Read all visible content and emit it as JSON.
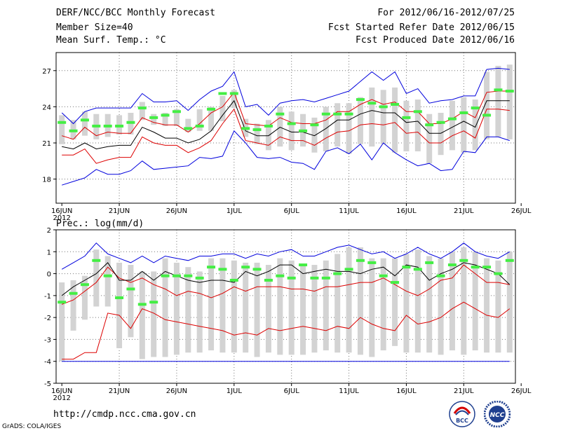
{
  "header": {
    "title": "DERF/NCC/BCC Monthly Forecast",
    "member_size": "Member Size=40",
    "variable": "Mean Surf. Temp.: °C",
    "forecast_period": "For 2012/06/16-2012/07/25",
    "start_date": "Fcst Started Refer Date 2012/06/15",
    "produced_date": "Fcst Produced Date 2012/06/16"
  },
  "footer": {
    "url": "http://cmdp.ncc.cma.gov.cn",
    "grads": "GrADS: COLA/IGES",
    "logo_left_text": "BCC",
    "logo_right_text": "NCC"
  },
  "colors": {
    "box": "#d3d3d3",
    "mean": "#000000",
    "sd": "#dd0000",
    "extreme": "#0000dd",
    "obs": "#44ee44",
    "grid": "#777777"
  },
  "chart_data": [
    {
      "type": "line",
      "title": "Mean Surf. Temp.: °C",
      "x_tick_labels": [
        "16JUN",
        "21JUN",
        "26JUN",
        "1JUL",
        "6JUL",
        "11JUL",
        "16JUL",
        "21JUL",
        "26JUL"
      ],
      "x_year_label": "2012",
      "ylim": [
        16,
        28.5
      ],
      "y_ticks": [
        18,
        21,
        24,
        27
      ],
      "days": 40,
      "series": [
        {
          "name": "mean",
          "values": [
            20.7,
            20.5,
            21.0,
            20.5,
            20.7,
            20.8,
            20.8,
            22.3,
            21.9,
            21.4,
            21.4,
            21.0,
            21.3,
            22.0,
            23.3,
            24.5,
            22.0,
            21.6,
            21.6,
            22.3,
            21.9,
            21.9,
            21.6,
            22.2,
            22.9,
            22.9,
            23.4,
            23.7,
            23.5,
            23.5,
            22.7,
            22.8,
            21.8,
            21.8,
            22.3,
            22.8,
            22.3,
            24.5,
            24.5,
            24.5
          ]
        },
        {
          "name": "plus_1sd",
          "values": [
            21.6,
            21.3,
            22.3,
            21.6,
            21.9,
            21.8,
            21.8,
            23.1,
            22.7,
            22.5,
            22.5,
            21.9,
            22.6,
            23.5,
            24.0,
            25.2,
            22.6,
            22.5,
            22.4,
            23.1,
            22.7,
            22.6,
            22.6,
            22.9,
            23.6,
            23.6,
            24.2,
            24.6,
            24.2,
            24.4,
            23.6,
            23.6,
            22.6,
            22.6,
            23.0,
            23.6,
            23.1,
            25.2,
            25.3,
            25.3
          ]
        },
        {
          "name": "minus_1sd",
          "values": [
            20.0,
            20.0,
            20.5,
            19.3,
            19.6,
            19.8,
            19.8,
            21.5,
            21.0,
            20.8,
            20.8,
            20.2,
            20.6,
            21.2,
            22.6,
            23.8,
            21.2,
            21.0,
            20.8,
            21.5,
            21.2,
            21.2,
            20.8,
            21.4,
            21.9,
            22.0,
            22.5,
            22.6,
            22.5,
            22.7,
            21.8,
            21.9,
            21.0,
            21.0,
            21.6,
            22.0,
            21.4,
            23.8,
            23.8,
            23.7
          ]
        },
        {
          "name": "max",
          "values": [
            23.5,
            22.6,
            23.6,
            23.9,
            23.9,
            23.9,
            23.9,
            25.1,
            24.4,
            24.4,
            24.5,
            23.7,
            24.6,
            25.3,
            25.7,
            26.9,
            24.0,
            24.2,
            23.3,
            24.3,
            24.5,
            24.6,
            24.4,
            24.7,
            25.0,
            25.3,
            26.1,
            26.9,
            26.2,
            26.9,
            25.1,
            25.5,
            24.3,
            24.5,
            24.6,
            24.9,
            24.9,
            27.1,
            27.2,
            27.1
          ]
        },
        {
          "name": "min",
          "values": [
            17.5,
            17.8,
            18.1,
            18.8,
            18.4,
            18.4,
            18.7,
            19.5,
            18.8,
            18.9,
            19.0,
            19.1,
            19.8,
            19.7,
            19.9,
            22.0,
            21.0,
            19.8,
            19.7,
            19.8,
            19.4,
            19.3,
            18.8,
            20.3,
            20.6,
            20.1,
            20.9,
            19.6,
            21.0,
            20.2,
            19.6,
            19.1,
            19.3,
            18.7,
            18.8,
            20.3,
            20.2,
            21.5,
            21.5,
            21.2
          ]
        },
        {
          "name": "observed",
          "values": [
            22.7,
            22.0,
            22.9,
            22.4,
            22.4,
            22.4,
            22.7,
            23.9,
            23.1,
            23.3,
            23.6,
            22.2,
            22.4,
            23.8,
            25.1,
            25.1,
            22.2,
            22.1,
            22.4,
            23.4,
            22.6,
            22.0,
            22.5,
            23.4,
            23.4,
            23.4,
            24.6,
            24.3,
            24.0,
            24.2,
            23.1,
            23.6,
            22.5,
            22.7,
            23.0,
            23.5,
            23.9,
            23.3,
            25.4,
            25.3
          ]
        }
      ],
      "box_upper": [
        23.3,
        22.9,
        23.6,
        23.4,
        23.4,
        23.3,
        23.5,
        24.4,
        23.4,
        23.5,
        23.8,
        23.0,
        23.8,
        24.0,
        24.9,
        25.4,
        23.0,
        22.6,
        22.9,
        24.0,
        23.6,
        23.4,
        23.1,
        24.0,
        24.3,
        24.3,
        24.8,
        25.6,
        25.4,
        25.6,
        24.5,
        24.6,
        23.4,
        23.5,
        24.5,
        24.8,
        24.6,
        26.9,
        27.4,
        27.5
      ],
      "box_lower": [
        20.9,
        21.3,
        21.6,
        21.3,
        21.5,
        21.7,
        21.7,
        22.9,
        22.5,
        22.4,
        22.4,
        21.9,
        22.0,
        22.0,
        22.8,
        23.9,
        21.5,
        20.9,
        20.4,
        20.7,
        20.4,
        20.7,
        20.2,
        20.3,
        20.7,
        20.1,
        20.9,
        20.7,
        20.9,
        20.2,
        20.3,
        20.3,
        19.3,
        20.0,
        20.4,
        20.2,
        20.4,
        21.3,
        21.5,
        21.3
      ]
    },
    {
      "type": "line",
      "title": "Prec.: log(mm/d)",
      "x_tick_labels": [
        "16JUN",
        "21JUN",
        "26JUN",
        "1JUL",
        "6JUL",
        "11JUL",
        "16JUL",
        "21JUL",
        "26JUL"
      ],
      "x_year_label": "2012",
      "ylim": [
        -5,
        2
      ],
      "y_ticks": [
        -5,
        -4,
        -3,
        -2,
        -1,
        0,
        1,
        2
      ],
      "days": 40,
      "series": [
        {
          "name": "mean",
          "values": [
            -1.0,
            -0.6,
            -0.3,
            0.0,
            0.5,
            -0.3,
            -0.3,
            0.1,
            -0.3,
            0.1,
            -0.1,
            -0.3,
            -0.4,
            -0.3,
            -0.3,
            -0.4,
            0.1,
            -0.1,
            0.1,
            0.4,
            0.4,
            0.0,
            0.1,
            0.2,
            0.1,
            0.1,
            0.0,
            0.2,
            0.3,
            -0.1,
            0.4,
            0.3,
            -0.3,
            0.0,
            0.2,
            0.5,
            0.4,
            0.2,
            0.0,
            -0.5
          ]
        },
        {
          "name": "plus_1sd",
          "values": [
            -1.4,
            -1.2,
            -0.8,
            -0.4,
            0.3,
            -0.2,
            -0.4,
            -0.2,
            -0.5,
            -0.7,
            -1.0,
            -0.8,
            -0.9,
            -1.1,
            -0.9,
            -0.6,
            -0.8,
            -0.6,
            -0.6,
            -0.6,
            -0.7,
            -0.7,
            -0.8,
            -0.6,
            -0.6,
            -0.5,
            -0.4,
            -0.4,
            -0.2,
            -0.5,
            -0.8,
            -1.0,
            -0.7,
            -0.3,
            -0.2,
            0.4,
            0.0,
            -0.4,
            -0.4,
            -0.5
          ]
        },
        {
          "name": "minus_1sd",
          "values": [
            -3.9,
            -3.9,
            -3.6,
            -3.6,
            -1.8,
            -1.9,
            -2.5,
            -1.6,
            -1.8,
            -2.1,
            -2.2,
            -2.3,
            -2.4,
            -2.5,
            -2.6,
            -2.8,
            -2.7,
            -2.8,
            -2.5,
            -2.6,
            -2.5,
            -2.4,
            -2.5,
            -2.6,
            -2.4,
            -2.5,
            -2.0,
            -2.3,
            -2.5,
            -2.6,
            -1.9,
            -2.3,
            -2.2,
            -2.0,
            -1.6,
            -1.3,
            -1.6,
            -1.9,
            -2.0,
            -1.6
          ]
        },
        {
          "name": "max",
          "values": [
            0.2,
            0.5,
            0.8,
            1.4,
            0.9,
            0.7,
            0.5,
            0.8,
            0.5,
            0.8,
            0.7,
            0.6,
            0.8,
            0.8,
            0.9,
            0.9,
            0.7,
            0.9,
            0.8,
            1.0,
            1.1,
            0.8,
            0.8,
            1.0,
            1.2,
            1.3,
            1.1,
            0.9,
            1.0,
            0.7,
            0.9,
            1.2,
            0.9,
            0.7,
            1.0,
            1.4,
            1.0,
            0.8,
            0.7,
            1.0
          ]
        },
        {
          "name": "min",
          "values": [
            -4.0,
            -4.0,
            -4.0,
            -4.0,
            -4.0,
            -4.0,
            -4.0,
            -4.0,
            -4.0,
            -4.0,
            -4.0,
            -4.0,
            -4.0,
            -4.0,
            -4.0,
            -4.0,
            -4.0,
            -4.0,
            -4.0,
            -4.0,
            -4.0,
            -4.0,
            -4.0,
            -4.0,
            -4.0,
            -4.0,
            -4.0,
            -4.0,
            -4.0,
            -4.0,
            -4.0,
            -4.0,
            -4.0,
            -4.0,
            -4.0,
            -4.0,
            -4.0,
            -4.0,
            -4.0,
            -4.0
          ]
        },
        {
          "name": "observed",
          "values": [
            -1.3,
            -0.9,
            -0.5,
            0.6,
            -0.1,
            -1.1,
            -0.7,
            -1.4,
            -1.3,
            -0.1,
            -0.1,
            -0.1,
            -0.2,
            0.3,
            0.2,
            -0.3,
            0.3,
            0.2,
            -0.3,
            -0.1,
            -0.2,
            0.4,
            -0.2,
            -0.2,
            0.0,
            0.2,
            0.6,
            0.5,
            -0.1,
            -0.4,
            0.3,
            0.2,
            0.5,
            -0.1,
            0.4,
            0.6,
            0.3,
            0.3,
            0.0,
            0.6
          ]
        }
      ],
      "box_upper": [
        -0.4,
        -0.3,
        -0.1,
        1.1,
        0.8,
        0.5,
        0.4,
        0.1,
        0.1,
        0.7,
        0.5,
        0.3,
        0.1,
        0.7,
        0.7,
        0.6,
        0.5,
        0.5,
        0.4,
        0.7,
        0.6,
        0.4,
        0.4,
        0.6,
        0.9,
        1.2,
        1.2,
        0.7,
        0.7,
        0.7,
        0.9,
        1.1,
        0.8,
        0.7,
        1.0,
        1.2,
        1.0,
        0.7,
        0.6,
        1.0
      ],
      "box_lower": [
        -4.0,
        -2.6,
        -2.1,
        -1.5,
        -1.5,
        -3.4,
        -2.9,
        -3.9,
        -3.8,
        -3.8,
        -3.7,
        -3.6,
        -3.6,
        -3.5,
        -3.6,
        -3.6,
        -3.6,
        -3.8,
        -3.6,
        -3.7,
        -3.7,
        -3.7,
        -3.6,
        -3.5,
        -3.6,
        -3.6,
        -3.7,
        -3.8,
        -3.5,
        -3.3,
        -3.6,
        -3.6,
        -3.6,
        -3.7,
        -3.5,
        -3.7,
        -3.5,
        -3.6,
        -3.6,
        -3.6
      ]
    }
  ]
}
